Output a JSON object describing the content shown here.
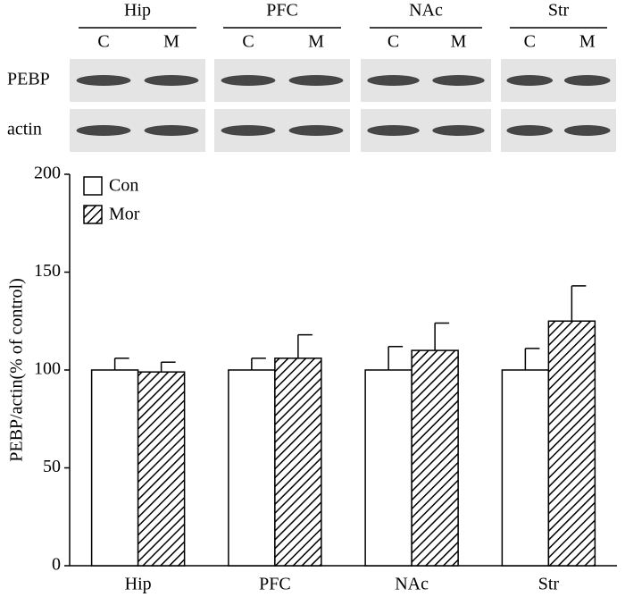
{
  "blot": {
    "groups": [
      "Hip",
      "PFC",
      "NAc",
      "Str"
    ],
    "lanes": [
      "C",
      "M"
    ],
    "rows": [
      "PEBP",
      "actin"
    ]
  },
  "chart_data": {
    "type": "bar",
    "y_label": "PEBP/actin(% of control)",
    "categories": [
      "Hip",
      "PFC",
      "NAc",
      "Str"
    ],
    "series": [
      {
        "name": "Con",
        "color": "#000000",
        "hatch": false,
        "values": [
          100,
          100,
          100,
          100
        ],
        "errors": [
          6,
          6,
          12,
          11
        ]
      },
      {
        "name": "Mor",
        "color": "#000000",
        "hatch": true,
        "values": [
          99,
          106,
          110,
          125
        ],
        "errors": [
          5,
          12,
          14,
          18
        ]
      }
    ],
    "ylim": [
      0,
      200
    ],
    "yticks": [
      0,
      50,
      100,
      150,
      200
    ],
    "grid": false,
    "legend": "top-left"
  }
}
